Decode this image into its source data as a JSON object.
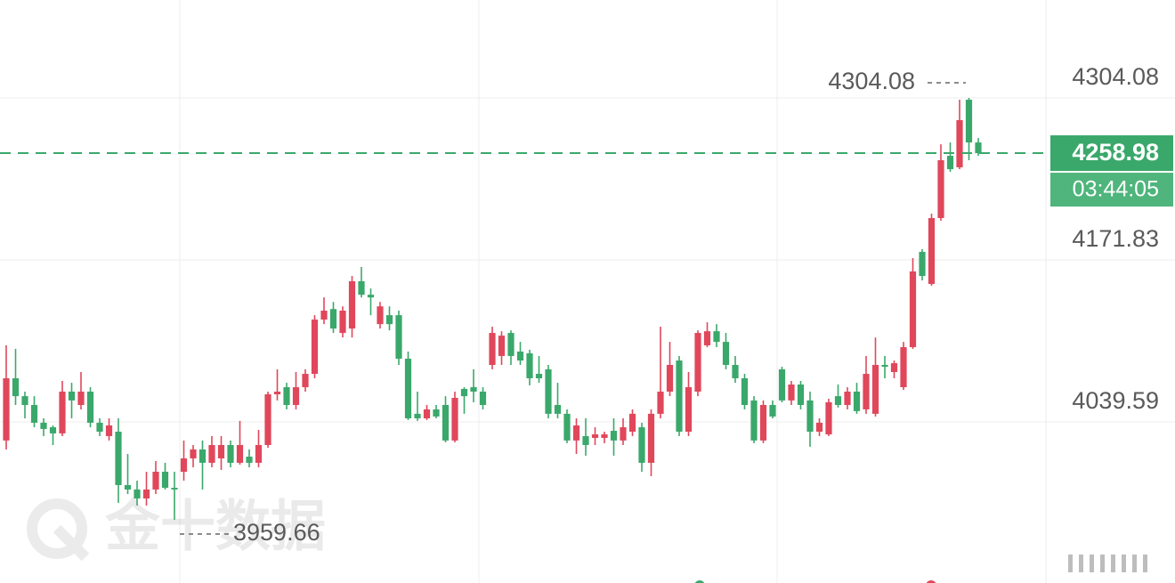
{
  "chart_data": {
    "type": "candlestick",
    "open": [
      4024.4,
      4075.2,
      4060.6,
      4053.4,
      4038.9,
      4035.2,
      4030.2,
      4064.3,
      4053.4,
      4064.3,
      4038.9,
      4028.0,
      4031.6,
      3988.0,
      3984.4,
      3977.1,
      3984.4,
      3998.9,
      3985.8,
      3998.9,
      4009.8,
      4017.1,
      4006.2,
      4009.8,
      4020.7,
      4006.2,
      4011.2,
      4006.2,
      4020.7,
      4062.1,
      4067.9,
      4053.4,
      4067.9,
      4078.8,
      4123.1,
      4131.7,
      4112.2,
      4115.8,
      4154.4,
      4143.4,
      4119.4,
      4126.7,
      4126.7,
      4091.2,
      4046.2,
      4042.5,
      4049.8,
      4053.4,
      4024.4,
      4066.5,
      4067.9,
      4064.3,
      4086.1,
      4093.4,
      4112.2,
      4097.0,
      4095.6,
      4078.8,
      4082.5,
      4053.4,
      4046.2,
      4024.4,
      4028.0,
      4026.5,
      4026.5,
      4032.3,
      4024.4,
      4031.6,
      4035.2,
      4006.2,
      4046.2,
      4064.3,
      4089.7,
      4031.6,
      4064.3,
      4102.1,
      4113.6,
      4104.9,
      4086.1,
      4075.2,
      4057.1,
      4024.4,
      4053.4,
      4082.5,
      4057.1,
      4070.1,
      4057.1,
      4031.6,
      4029.4,
      4060.6,
      4053.4,
      4064.3,
      4049.8,
      4046.2,
      4086.1,
      4080.3,
      4067.9,
      4100.6,
      4178.4,
      4152.2,
      4206.0,
      4256.8,
      4247.4,
      4302.6,
      4267.7
    ],
    "high": [
      4102.1,
      4099.2,
      4064.3,
      4060.6,
      4042.5,
      4036.7,
      4073.0,
      4071.5,
      4080.3,
      4067.9,
      4042.5,
      4042.5,
      4042.5,
      4013.4,
      3991.6,
      3998.9,
      4007.6,
      4006.2,
      3998.9,
      4024.4,
      4020.7,
      4024.4,
      4028.0,
      4028.0,
      4024.4,
      4040.4,
      4017.1,
      4033.0,
      4064.3,
      4082.5,
      4071.5,
      4080.3,
      4082.5,
      4126.7,
      4141.2,
      4137.5,
      4133.9,
      4158.7,
      4166.0,
      4148.5,
      4137.5,
      4133.9,
      4130.4,
      4097.0,
      4064.3,
      4053.4,
      4053.4,
      4060.6,
      4064.3,
      4067.9,
      4082.5,
      4067.9,
      4117.3,
      4113.6,
      4114.3,
      4104.9,
      4098.5,
      4093.4,
      4086.1,
      4071.5,
      4049.8,
      4042.5,
      4042.5,
      4035.2,
      4031.6,
      4042.5,
      4042.5,
      4049.8,
      4038.9,
      4049.8,
      4117.3,
      4104.9,
      4093.4,
      4080.3,
      4114.3,
      4120.9,
      4119.4,
      4112.2,
      4093.4,
      4078.8,
      4060.6,
      4057.1,
      4057.1,
      4084.6,
      4073.0,
      4073.0,
      4064.3,
      4042.5,
      4058.5,
      4070.1,
      4067.9,
      4071.5,
      4093.4,
      4108.5,
      4093.4,
      4089.7,
      4104.9,
      4173.3,
      4180.6,
      4209.6,
      4266.2,
      4267.7,
      4302.6,
      4304.08,
      4271.3
    ],
    "low": [
      4017.1,
      4053.4,
      4042.5,
      4035.2,
      4028.0,
      4020.7,
      4028.0,
      4042.5,
      4049.8,
      4035.2,
      4028.0,
      4024.4,
      3973.5,
      3980.7,
      3971.3,
      3971.3,
      3980.7,
      3984.4,
      3959.66,
      3991.6,
      4002.5,
      3984.4,
      4002.5,
      4000.4,
      4002.5,
      4004.7,
      4002.5,
      4002.5,
      4018.5,
      4057.1,
      4049.8,
      4049.8,
      4064.3,
      4075.2,
      4119.4,
      4112.2,
      4108.5,
      4108.5,
      4141.2,
      4126.7,
      4115.8,
      4114.3,
      4086.1,
      4041.1,
      4040.4,
      4041.1,
      4042.5,
      4022.9,
      4022.9,
      4046.2,
      4055.6,
      4049.8,
      4082.5,
      4086.1,
      4086.1,
      4086.1,
      4069.4,
      4071.5,
      4042.5,
      4042.5,
      4022.2,
      4013.4,
      4012.0,
      4020.7,
      4022.2,
      4012.0,
      4020.7,
      4028.0,
      3998.9,
      3995.3,
      4042.5,
      4060.6,
      4028.0,
      4028.0,
      4060.6,
      4100.6,
      4100.6,
      4082.5,
      4071.5,
      4049.8,
      4022.2,
      4022.2,
      4042.5,
      4055.6,
      4053.4,
      4049.8,
      4019.3,
      4028.0,
      4028.0,
      4051.3,
      4049.8,
      4046.2,
      4046.2,
      4044.0,
      4075.2,
      4075.2,
      4065.7,
      4099.2,
      4155.1,
      4150.7,
      4203.8,
      4243.8,
      4245.9,
      4253.2,
      4256.8
    ],
    "close": [
      4075.2,
      4060.6,
      4053.4,
      4038.9,
      4033.8,
      4030.2,
      4064.3,
      4057.1,
      4064.3,
      4038.9,
      4031.6,
      4036.7,
      3988.0,
      3984.4,
      3977.1,
      3984.4,
      3998.9,
      3985.8,
      3984.4,
      4009.8,
      4017.1,
      4006.2,
      4020.7,
      4020.7,
      4006.2,
      4020.7,
      4006.2,
      4020.7,
      4062.1,
      4064.3,
      4053.4,
      4067.9,
      4078.8,
      4123.1,
      4130.4,
      4115.8,
      4130.4,
      4154.4,
      4143.4,
      4141.2,
      4133.9,
      4119.4,
      4091.2,
      4042.5,
      4042.5,
      4049.8,
      4044.0,
      4024.4,
      4059.2,
      4060.6,
      4064.3,
      4053.4,
      4112.2,
      4110.0,
      4093.4,
      4089.7,
      4075.2,
      4075.2,
      4046.2,
      4046.2,
      4024.4,
      4036.7,
      4020.7,
      4029.4,
      4029.4,
      4024.4,
      4035.2,
      4046.2,
      4006.2,
      4046.2,
      4064.3,
      4086.1,
      4031.6,
      4067.9,
      4112.2,
      4113.6,
      4104.9,
      4086.1,
      4075.2,
      4053.4,
      4024.4,
      4053.4,
      4044.0,
      4057.1,
      4070.1,
      4053.4,
      4031.6,
      4038.9,
      4055.6,
      4053.4,
      4064.3,
      4048.4,
      4078.8,
      4086.1,
      4084.6,
      4087.5,
      4100.6,
      4162.4,
      4158.7,
      4206.0,
      4253.2,
      4245.9,
      4285.9,
      4267.7,
      4258.98
    ],
    "up_color": "#e0475b",
    "down_color": "#3aa86b",
    "ylim": [
      3908.07,
      4384.0
    ],
    "yticks": [
      4039.59,
      4171.83,
      4304.08
    ],
    "grid": true,
    "max_label": 4304.08,
    "min_label": 3959.66,
    "last_price": 4258.98,
    "countdown": "03:44:05",
    "watermark": "金十数据"
  }
}
